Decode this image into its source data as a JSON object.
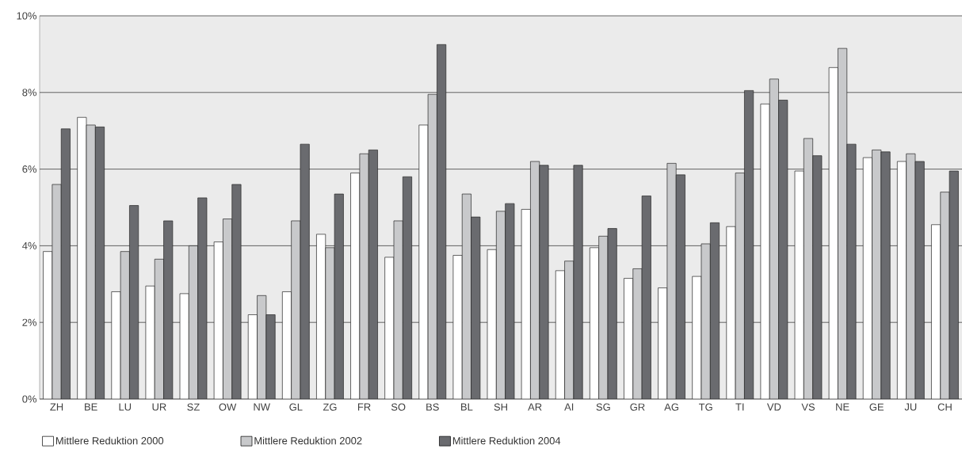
{
  "chart_data": {
    "type": "bar",
    "categories": [
      "ZH",
      "BE",
      "LU",
      "UR",
      "SZ",
      "OW",
      "NW",
      "GL",
      "ZG",
      "FR",
      "SO",
      "BS",
      "BL",
      "SH",
      "AR",
      "AI",
      "SG",
      "GR",
      "AG",
      "TG",
      "TI",
      "VD",
      "VS",
      "NE",
      "GE",
      "JU",
      "CH"
    ],
    "series": [
      {
        "name": "Mittlere Reduktion 2000",
        "color": "#ffffff",
        "values": [
          3.85,
          7.35,
          2.8,
          2.95,
          2.75,
          4.1,
          2.2,
          2.8,
          4.3,
          5.9,
          3.7,
          7.15,
          3.75,
          3.9,
          4.95,
          3.35,
          3.95,
          3.15,
          2.9,
          3.2,
          4.5,
          7.7,
          5.95,
          8.65,
          6.3,
          6.2,
          4.55
        ]
      },
      {
        "name": "Mittlere Reduktion 2002",
        "color": "#c8c9cb",
        "values": [
          5.6,
          7.15,
          3.85,
          3.65,
          4.0,
          4.7,
          2.7,
          4.65,
          3.95,
          6.4,
          4.65,
          7.95,
          5.35,
          4.9,
          6.2,
          3.6,
          4.25,
          3.4,
          6.15,
          4.05,
          5.9,
          8.35,
          6.8,
          9.15,
          6.5,
          6.4,
          5.4
        ]
      },
      {
        "name": "Mittlere Reduktion 2004",
        "color": "#6a6b6f",
        "values": [
          7.05,
          7.1,
          5.05,
          4.65,
          5.25,
          5.6,
          2.2,
          6.65,
          5.35,
          6.5,
          5.8,
          9.25,
          4.75,
          5.1,
          6.1,
          6.1,
          4.45,
          5.3,
          5.85,
          4.6,
          8.05,
          7.8,
          6.35,
          6.65,
          6.45,
          6.2,
          5.95
        ]
      }
    ],
    "ylim": [
      0,
      10
    ],
    "yticks": [
      {
        "value": 0,
        "label": "0%"
      },
      {
        "value": 2,
        "label": "2%"
      },
      {
        "value": 4,
        "label": "4%"
      },
      {
        "value": 6,
        "label": "6%"
      },
      {
        "value": 8,
        "label": "8%"
      },
      {
        "value": 10,
        "label": "10%"
      }
    ],
    "grid": "y",
    "legend": "bottom"
  }
}
